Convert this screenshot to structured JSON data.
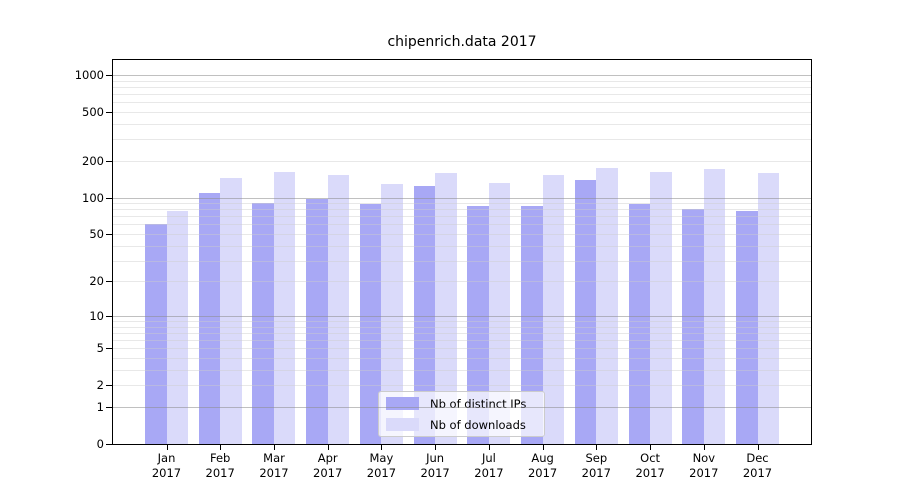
{
  "chart_data": {
    "type": "bar",
    "title": "chipenrich.data 2017",
    "categories": [
      "Jan",
      "Feb",
      "Mar",
      "Apr",
      "May",
      "Jun",
      "Jul",
      "Aug",
      "Sep",
      "Oct",
      "Nov",
      "Dec"
    ],
    "x_tick_year": "2017",
    "series": [
      {
        "name": "Nb of distinct IPs",
        "color": "#a8a8f5",
        "values": [
          60,
          108,
          90,
          98,
          88,
          124,
          85,
          85,
          140,
          88,
          80,
          77
        ]
      },
      {
        "name": "Nb of downloads",
        "color": "#dadafa",
        "values": [
          77,
          145,
          162,
          154,
          130,
          160,
          132,
          154,
          174,
          162,
          172,
          160
        ]
      }
    ],
    "y_ticks": [
      0,
      1,
      2,
      5,
      10,
      20,
      50,
      100,
      200,
      500,
      1000
    ],
    "y_scale": "log10(1+v)",
    "ylim": [
      0,
      1323
    ],
    "grid": true,
    "legend_position": "lower-center",
    "colors": {
      "grid_major": "#8c8c8c",
      "grid_minor": "#cdcdcd",
      "spine": "#000000",
      "background": "#ffffff",
      "text": "#000000"
    }
  }
}
